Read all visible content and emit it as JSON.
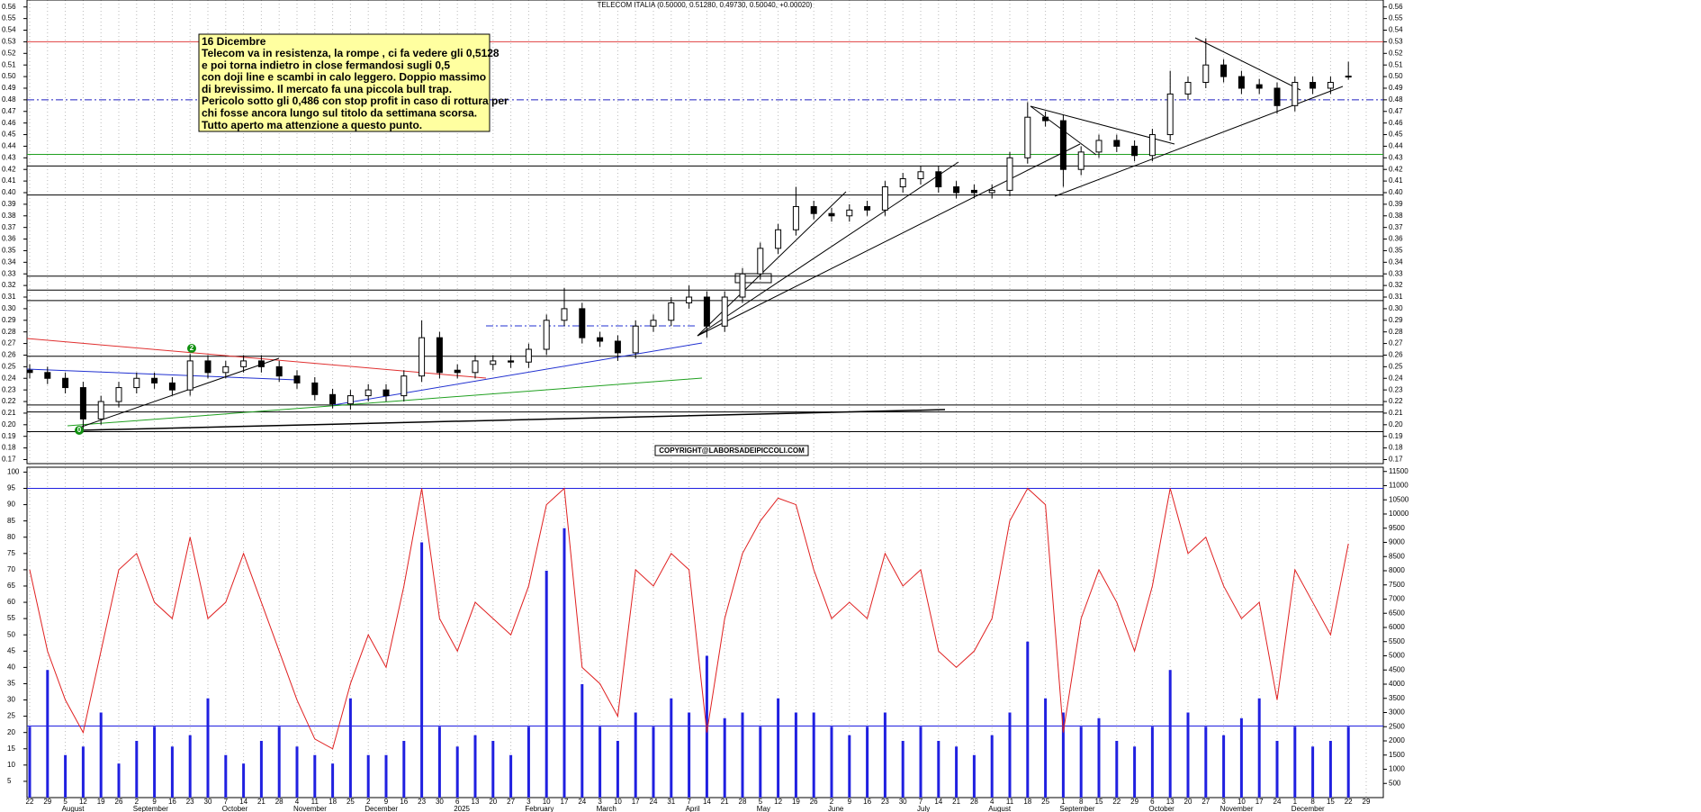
{
  "chart_data": [
    {
      "type": "candlestick",
      "title": "TELECOM ITALIA (0.50000, 0.51280, 0.49730, 0.50040, +0.00020)",
      "x": [
        "22",
        "29",
        "5",
        "12",
        "19",
        "26",
        "2",
        "9",
        "16",
        "23",
        "30",
        "7",
        "14",
        "21",
        "28",
        "4",
        "11",
        "18",
        "25",
        "2",
        "9",
        "16",
        "23",
        "30",
        "6",
        "13",
        "20",
        "27",
        "3",
        "10",
        "17",
        "24",
        "3",
        "10",
        "17",
        "24",
        "31",
        "7",
        "14",
        "21",
        "28",
        "5",
        "12",
        "19",
        "26",
        "2",
        "9",
        "16",
        "23",
        "30",
        "7",
        "14",
        "21",
        "28",
        "4",
        "11",
        "18",
        "25",
        "1",
        "8",
        "15",
        "22",
        "29",
        "6",
        "13",
        "20",
        "27",
        "3",
        "10",
        "17",
        "24",
        "1",
        "8",
        "15",
        "22",
        "29"
      ],
      "months": [
        "August",
        "September",
        "October",
        "November",
        "December",
        "2025",
        "February",
        "March",
        "April",
        "May",
        "June",
        "July",
        "August",
        "September",
        "October",
        "November",
        "December"
      ],
      "candles": [
        [
          0.247,
          0.252,
          0.24,
          0.245
        ],
        [
          0.245,
          0.25,
          0.235,
          0.24
        ],
        [
          0.24,
          0.245,
          0.227,
          0.232
        ],
        [
          0.232,
          0.237,
          0.195,
          0.205
        ],
        [
          0.205,
          0.225,
          0.2,
          0.22
        ],
        [
          0.22,
          0.237,
          0.215,
          0.232
        ],
        [
          0.232,
          0.245,
          0.227,
          0.24
        ],
        [
          0.24,
          0.245,
          0.231,
          0.236
        ],
        [
          0.236,
          0.241,
          0.225,
          0.23
        ],
        [
          0.23,
          0.261,
          0.225,
          0.255
        ],
        [
          0.255,
          0.26,
          0.24,
          0.245
        ],
        [
          0.245,
          0.255,
          0.24,
          0.25
        ],
        [
          0.25,
          0.26,
          0.245,
          0.255
        ],
        [
          0.255,
          0.26,
          0.245,
          0.25
        ],
        [
          0.25,
          0.255,
          0.237,
          0.242
        ],
        [
          0.242,
          0.247,
          0.231,
          0.236
        ],
        [
          0.236,
          0.241,
          0.221,
          0.226
        ],
        [
          0.226,
          0.231,
          0.214,
          0.218
        ],
        [
          0.218,
          0.23,
          0.213,
          0.225
        ],
        [
          0.225,
          0.235,
          0.22,
          0.23
        ],
        [
          0.23,
          0.235,
          0.22,
          0.225
        ],
        [
          0.225,
          0.247,
          0.22,
          0.242
        ],
        [
          0.242,
          0.29,
          0.237,
          0.275
        ],
        [
          0.275,
          0.28,
          0.24,
          0.245
        ],
        [
          0.247,
          0.252,
          0.24,
          0.245
        ],
        [
          0.245,
          0.26,
          0.24,
          0.255
        ],
        [
          0.252,
          0.26,
          0.247,
          0.255
        ],
        [
          0.255,
          0.26,
          0.249,
          0.254
        ],
        [
          0.254,
          0.27,
          0.249,
          0.265
        ],
        [
          0.265,
          0.295,
          0.26,
          0.29
        ],
        [
          0.29,
          0.318,
          0.285,
          0.3
        ],
        [
          0.3,
          0.305,
          0.27,
          0.275
        ],
        [
          0.275,
          0.28,
          0.267,
          0.272
        ],
        [
          0.272,
          0.277,
          0.255,
          0.262
        ],
        [
          0.262,
          0.29,
          0.257,
          0.285
        ],
        [
          0.285,
          0.295,
          0.28,
          0.29
        ],
        [
          0.29,
          0.31,
          0.285,
          0.305
        ],
        [
          0.305,
          0.32,
          0.3,
          0.31
        ],
        [
          0.31,
          0.315,
          0.275,
          0.285
        ],
        [
          0.285,
          0.315,
          0.28,
          0.31
        ],
        [
          0.31,
          0.335,
          0.305,
          0.33
        ],
        [
          0.33,
          0.357,
          0.325,
          0.352
        ],
        [
          0.352,
          0.373,
          0.347,
          0.368
        ],
        [
          0.368,
          0.405,
          0.363,
          0.388
        ],
        [
          0.388,
          0.393,
          0.377,
          0.382
        ],
        [
          0.382,
          0.387,
          0.375,
          0.38
        ],
        [
          0.38,
          0.39,
          0.375,
          0.385
        ],
        [
          0.388,
          0.393,
          0.38,
          0.385
        ],
        [
          0.385,
          0.41,
          0.38,
          0.405
        ],
        [
          0.405,
          0.417,
          0.4,
          0.412
        ],
        [
          0.412,
          0.423,
          0.407,
          0.418
        ],
        [
          0.418,
          0.423,
          0.4,
          0.405
        ],
        [
          0.405,
          0.41,
          0.395,
          0.4
        ],
        [
          0.402,
          0.407,
          0.395,
          0.4
        ],
        [
          0.4,
          0.407,
          0.395,
          0.402
        ],
        [
          0.402,
          0.435,
          0.397,
          0.43
        ],
        [
          0.43,
          0.478,
          0.425,
          0.465
        ],
        [
          0.465,
          0.47,
          0.457,
          0.462
        ],
        [
          0.462,
          0.467,
          0.405,
          0.42
        ],
        [
          0.42,
          0.44,
          0.415,
          0.435
        ],
        [
          0.435,
          0.45,
          0.43,
          0.445
        ],
        [
          0.445,
          0.45,
          0.435,
          0.44
        ],
        [
          0.44,
          0.445,
          0.427,
          0.432
        ],
        [
          0.432,
          0.455,
          0.427,
          0.45
        ],
        [
          0.45,
          0.505,
          0.445,
          0.485
        ],
        [
          0.485,
          0.5,
          0.48,
          0.495
        ],
        [
          0.495,
          0.533,
          0.49,
          0.51
        ],
        [
          0.51,
          0.515,
          0.495,
          0.5
        ],
        [
          0.5,
          0.505,
          0.485,
          0.49
        ],
        [
          0.493,
          0.498,
          0.485,
          0.49
        ],
        [
          0.49,
          0.495,
          0.468,
          0.475
        ],
        [
          0.475,
          0.5,
          0.47,
          0.495
        ],
        [
          0.495,
          0.5,
          0.485,
          0.49
        ],
        [
          0.49,
          0.5,
          0.485,
          0.495
        ],
        [
          0.5,
          0.5128,
          0.4973,
          0.5004
        ]
      ],
      "color_up": "#ffffff",
      "color_down": "#000000",
      "ylim": [
        0.1665,
        0.566
      ],
      "yticks": [
        0.17,
        0.18,
        0.19,
        {
          "value": 0.2,
          "label": "0.20"
        },
        0.21,
        0.22,
        0.23,
        0.24,
        0.25,
        0.26,
        0.27,
        0.28,
        0.29,
        {
          "value": 0.3,
          "label": "0.30"
        },
        0.31,
        0.32,
        0.33,
        0.34,
        0.35,
        0.36,
        0.37,
        0.38,
        0.39,
        {
          "value": 0.4,
          "label": "0.40"
        },
        0.41,
        0.42,
        0.43,
        0.44,
        0.45,
        0.46,
        0.47,
        0.48,
        0.49,
        {
          "value": 0.5,
          "label": "0.50"
        },
        0.51,
        0.52,
        0.53,
        0.54,
        0.55,
        0.56
      ],
      "hlines": [
        {
          "value": 0.53,
          "color": "#e04040"
        },
        {
          "value": 0.48,
          "color": "#2020c0",
          "dash": true
        },
        {
          "value": 0.433,
          "color": "#20a020"
        },
        {
          "value": 0.423,
          "color": "#000000"
        },
        {
          "value": 0.398,
          "color": "#000000"
        },
        {
          "value": 0.328,
          "color": "#000000"
        },
        {
          "value": 0.316,
          "color": "#000000"
        },
        {
          "value": 0.307,
          "color": "#000000"
        },
        {
          "value": 0.259,
          "color": "#000000"
        },
        {
          "value": 0.217,
          "color": "#000000"
        },
        {
          "value": 0.211,
          "color": "#000000"
        },
        {
          "value": 0.194,
          "color": "#000000"
        }
      ],
      "note_title": "16 Dicembre",
      "note_lines": [
        "Telecom va in resistenza, la rompe , ci fa vedere gli 0,5128",
        "e poi torna indietro in close fermandosi sugli 0,5",
        "con doji line e scambi in calo leggero. Doppio massimo",
        "di brevissimo. Il mercato fa una piccola bull trap.",
        "Pericolo sotto gli 0,486 con stop profit in caso di rottura per",
        "chi fosse ancora lungo sul titolo da settimana scorsa.",
        "Tutto aperto ma attenzione a questo punto."
      ],
      "copyright": "COPYRIGHT@LABORSADEIPICCOLI.COM",
      "markers": [
        "2",
        "0"
      ]
    },
    {
      "type": "indicator",
      "oscillator": {
        "color": "#e02020",
        "values": [
          70,
          45,
          30,
          20,
          45,
          70,
          75,
          60,
          55,
          80,
          55,
          60,
          75,
          60,
          45,
          30,
          18,
          15,
          35,
          50,
          40,
          65,
          95,
          55,
          45,
          60,
          55,
          50,
          65,
          90,
          95,
          40,
          35,
          25,
          70,
          65,
          75,
          70,
          20,
          55,
          75,
          85,
          92,
          90,
          70,
          55,
          60,
          55,
          75,
          65,
          70,
          45,
          40,
          45,
          55,
          85,
          95,
          90,
          20,
          55,
          70,
          60,
          45,
          65,
          95,
          75,
          80,
          65,
          55,
          60,
          30,
          70,
          60,
          50,
          78
        ]
      },
      "volume": {
        "color": "#2020e0",
        "axis": "y2",
        "values": [
          2500,
          4500,
          1500,
          1800,
          3000,
          1200,
          2000,
          2500,
          1800,
          2200,
          3500,
          1500,
          1200,
          2000,
          2500,
          1800,
          1500,
          1200,
          3500,
          1500,
          1500,
          2000,
          9000,
          2500,
          1800,
          2200,
          2000,
          1500,
          2500,
          8000,
          9500,
          4000,
          2500,
          2000,
          3000,
          2500,
          3500,
          3000,
          5000,
          2800,
          3000,
          2500,
          3500,
          3000,
          3000,
          2500,
          2200,
          2500,
          3000,
          2000,
          2500,
          2000,
          1800,
          1500,
          2200,
          3000,
          5500,
          3500,
          3000,
          2500,
          2800,
          2000,
          1800,
          2500,
          4500,
          3000,
          2500,
          2200,
          2800,
          3500,
          2000,
          2500,
          1800,
          2000,
          2500
        ]
      },
      "ylim": [
        0,
        101.5
      ],
      "yticks": [
        100,
        95,
        90,
        85,
        80,
        75,
        70,
        65,
        60,
        55,
        50,
        45,
        40,
        35,
        30,
        25,
        20,
        15,
        10,
        5
      ],
      "y2lim": [
        0,
        11650
      ],
      "y2ticks": [
        11500,
        11000,
        10500,
        10000,
        9500,
        9000,
        8500,
        8000,
        7500,
        7000,
        6500,
        6000,
        5500,
        5000,
        4500,
        4000,
        3500,
        3000,
        2500,
        2000,
        1500,
        1000,
        500
      ],
      "hlines": [
        {
          "value": 95,
          "color": "#2020e0"
        },
        {
          "value": 22,
          "color": "#2020e0"
        }
      ]
    }
  ]
}
